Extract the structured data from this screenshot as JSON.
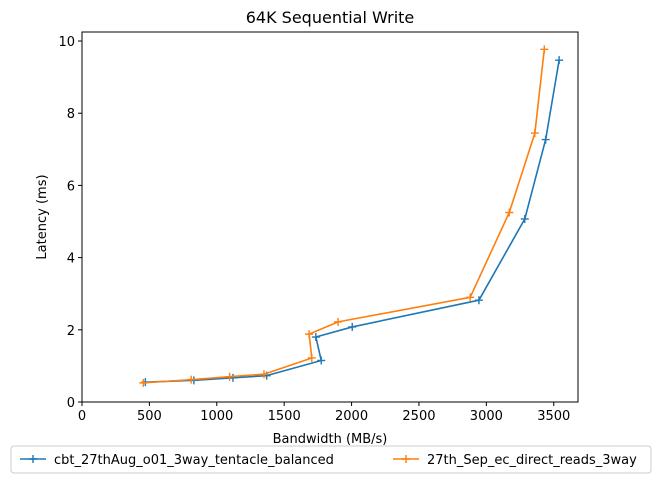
{
  "chart_data": {
    "type": "line",
    "title": "64K  Sequential Write",
    "xlabel": "Bandwidth (MB/s)",
    "ylabel": "Latency (ms)",
    "xlim": [
      0,
      3680
    ],
    "ylim": [
      0,
      10.25
    ],
    "xticks": [
      0,
      500,
      1000,
      1500,
      2000,
      2500,
      3000,
      3500
    ],
    "yticks": [
      0,
      2,
      4,
      6,
      8,
      10
    ],
    "grid": false,
    "legend_position": "bottom-center-outside",
    "marker": "+",
    "series": [
      {
        "name": "cbt_27thAug_o01_3way_tentacle_balanced",
        "color": "#1f77b4",
        "x": [
          470,
          830,
          1120,
          1370,
          1775,
          1735,
          2005,
          2945,
          3285,
          3440,
          3540
        ],
        "y": [
          0.55,
          0.6,
          0.67,
          0.73,
          1.15,
          1.8,
          2.08,
          2.82,
          5.07,
          7.27,
          9.47
        ]
      },
      {
        "name": "27th_Sep_ec_direct_reads_3way",
        "color": "#ff7f0e",
        "x": [
          455,
          810,
          1095,
          1350,
          1705,
          1685,
          1900,
          2880,
          3170,
          3360,
          3430
        ],
        "y": [
          0.53,
          0.62,
          0.7,
          0.77,
          1.22,
          1.88,
          2.22,
          2.9,
          5.25,
          7.45,
          9.77
        ]
      }
    ]
  }
}
